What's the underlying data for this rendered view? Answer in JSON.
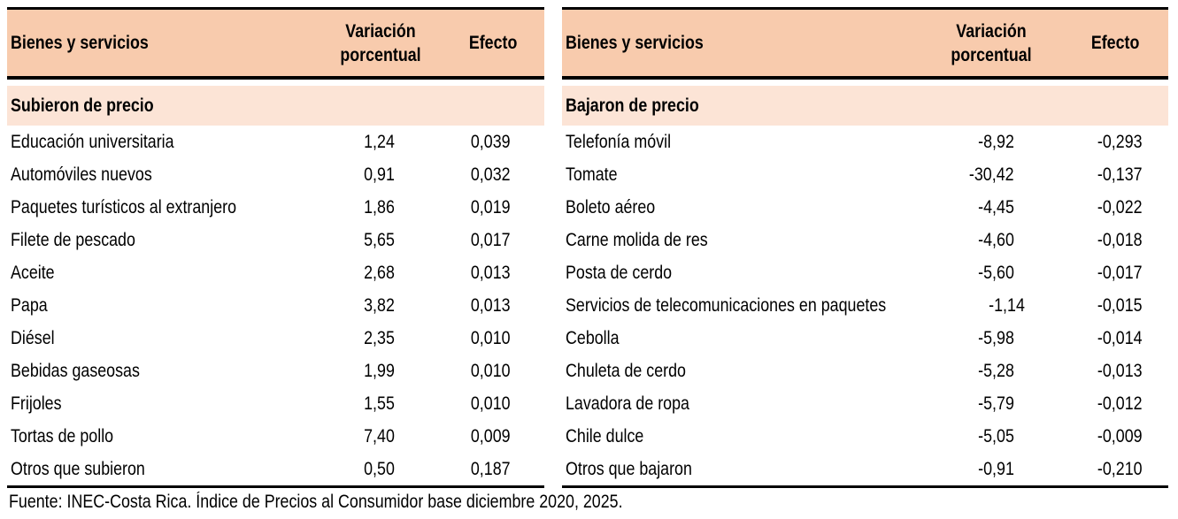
{
  "colors": {
    "header_bg": "#f8cbad",
    "section_bg": "#fce4d6",
    "border": "#000000",
    "text": "#000000"
  },
  "tables": [
    {
      "id": "subieron",
      "headers": {
        "item": "Bienes y servicios",
        "variation": "Variación porcentual",
        "effect": "Efecto"
      },
      "section_label": "Subieron de precio",
      "rows": [
        {
          "item": "Educación universitaria",
          "variation": "1,24",
          "effect": "0,039"
        },
        {
          "item": "Automóviles nuevos",
          "variation": "0,91",
          "effect": "0,032"
        },
        {
          "item": "Paquetes turísticos al extranjero",
          "variation": "1,86",
          "effect": "0,019"
        },
        {
          "item": "Filete de pescado",
          "variation": "5,65",
          "effect": "0,017"
        },
        {
          "item": "Aceite",
          "variation": "2,68",
          "effect": "0,013"
        },
        {
          "item": "Papa",
          "variation": "3,82",
          "effect": "0,013"
        },
        {
          "item": "Diésel",
          "variation": "2,35",
          "effect": "0,010"
        },
        {
          "item": "Bebidas gaseosas",
          "variation": "1,99",
          "effect": "0,010"
        },
        {
          "item": "Frijoles",
          "variation": "1,55",
          "effect": "0,010"
        },
        {
          "item": "Tortas de pollo",
          "variation": "7,40",
          "effect": "0,009"
        },
        {
          "item": "Otros que subieron",
          "variation": "0,50",
          "effect": "0,187"
        }
      ]
    },
    {
      "id": "bajaron",
      "headers": {
        "item": "Bienes y servicios",
        "variation": "Variación porcentual",
        "effect": "Efecto"
      },
      "section_label": "Bajaron de precio",
      "rows": [
        {
          "item": "Telefonía móvil",
          "variation": "-8,92",
          "effect": "-0,293"
        },
        {
          "item": "Tomate",
          "variation": "-30,42",
          "effect": "-0,137"
        },
        {
          "item": "Boleto aéreo",
          "variation": "-4,45",
          "effect": "-0,022"
        },
        {
          "item": "Carne molida de res",
          "variation": "-4,60",
          "effect": "-0,018"
        },
        {
          "item": "Posta de cerdo",
          "variation": "-5,60",
          "effect": "-0,017"
        },
        {
          "item": "Servicios de telecomunicaciones en paquetes",
          "variation": "-1,14",
          "effect": "-0,015"
        },
        {
          "item": "Cebolla",
          "variation": "-5,98",
          "effect": "-0,014"
        },
        {
          "item": "Chuleta de cerdo",
          "variation": "-5,28",
          "effect": "-0,013"
        },
        {
          "item": "Lavadora de ropa",
          "variation": "-5,79",
          "effect": "-0,012"
        },
        {
          "item": "Chile dulce",
          "variation": "-5,05",
          "effect": "-0,009"
        },
        {
          "item": "Otros que bajaron",
          "variation": "-0,91",
          "effect": "-0,210"
        }
      ]
    }
  ],
  "footer": {
    "source": "Fuente: INEC-Costa Rica. Índice de Precios al Consumidor base diciembre 2020, 2025."
  }
}
